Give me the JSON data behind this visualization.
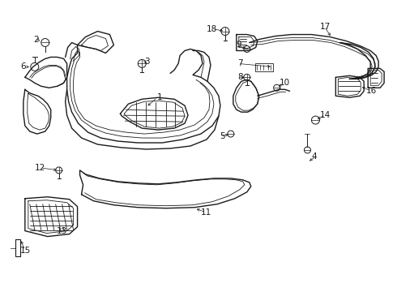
{
  "bg_color": "#ffffff",
  "line_color": "#1a1a1a",
  "fig_width": 4.9,
  "fig_height": 3.6,
  "dpi": 100,
  "font_size": 7.5,
  "lw": 1.0,
  "tlw": 0.6
}
